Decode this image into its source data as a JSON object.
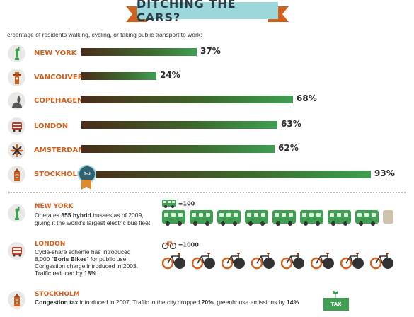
{
  "title": "DITCHING THE CARS?",
  "subtitle": "ercentage of residents walking, cycling, or taking public transport to work:",
  "chart_data": {
    "type": "bar",
    "title": "DITCHING THE CARS?",
    "orientation": "horizontal",
    "categories": [
      "NEW YORK",
      "VANCOUVER",
      "COPEHAGEN",
      "LONDON",
      "AMSTERDAM",
      "STOCKHOLM"
    ],
    "values": [
      37,
      24,
      68,
      63,
      62,
      93
    ],
    "value_labels": [
      "37%",
      "24%",
      "68%",
      "63%",
      "62%",
      "93%"
    ],
    "xlim": [
      0,
      100
    ],
    "grid": false,
    "annotations": [
      "1st"
    ],
    "colors": {
      "bar_start": "#4a2c18",
      "bar_end": "#3f9e52",
      "city_label": "#d4601d"
    }
  },
  "legend": {
    "bus": "=100",
    "bike": "=1000"
  },
  "facts": {
    "newyork": {
      "city": "NEW YORK",
      "line1_a": "Operates ",
      "line1_b": "855 hybrid",
      "line1_c": " busses as of 2009,",
      "line2": "giving it the world's largest electric bus fleet.",
      "pictogram_count": 8.55
    },
    "london": {
      "city": "LONDON",
      "line1": "Cycle-share scheme has introduced",
      "line2_a": "8,000 \"",
      "line2_b": "Boris Bikes",
      "line2_c": "\" for public use.",
      "line3": "Congestion charge introduced in 2003.",
      "line4_a": "Traffic reduced by ",
      "line4_b": "18%",
      "line4_c": ".",
      "pictogram_count": 8
    },
    "stockholm": {
      "city": "STOCKHOLM",
      "line1_a": "Congestion tax",
      "line1_b": " introduced in 2007. Traffic in the city dropped ",
      "line1_c": "20%",
      "line1_d": ", greenhouse emissions by ",
      "line1_e": "14%",
      "line1_f": ".",
      "tax_label": "TAX"
    }
  },
  "icons": [
    "statue-of-liberty-icon",
    "vancouver-totem-icon",
    "little-mermaid-icon",
    "double-decker-bus-icon",
    "windmill-icon",
    "stockholm-tower-icon",
    "bus-icon",
    "bicycle-icon",
    "tax-box-icon"
  ]
}
